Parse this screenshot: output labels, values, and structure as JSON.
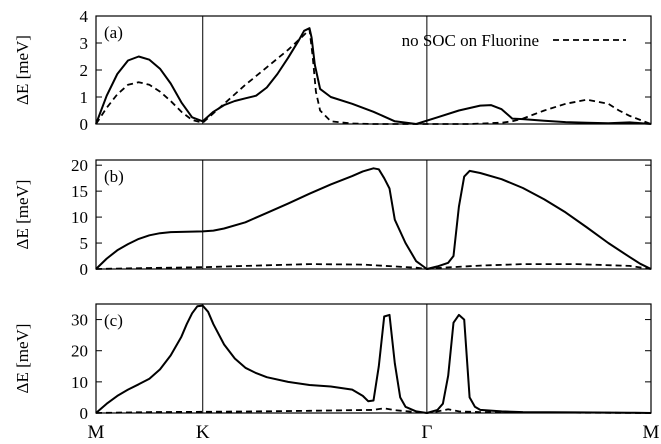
{
  "chart_data": [
    {
      "type": "line",
      "panel_label": "(a)",
      "ylabel": "ΔE [meV]",
      "ylim": [
        0,
        4
      ],
      "yticks": [
        0,
        1,
        2,
        3,
        4
      ],
      "xlim": [
        0,
        5.2
      ],
      "legend": {
        "text": "no SOC on Fluorine",
        "placement": "top-right"
      },
      "series": [
        {
          "style": "solid",
          "x": [
            0,
            0.1,
            0.2,
            0.3,
            0.4,
            0.5,
            0.6,
            0.7,
            0.8,
            0.9,
            1.0,
            1.1,
            1.2,
            1.3,
            1.4,
            1.5,
            1.6,
            1.7,
            1.8,
            1.9,
            1.95,
            2.0,
            2.02,
            2.05,
            2.1,
            2.2,
            2.4,
            2.6,
            2.8,
            3.0,
            3.2,
            3.4,
            3.6,
            3.7,
            3.8,
            3.9,
            4.0,
            4.2,
            4.4,
            4.6,
            4.8,
            5.0,
            5.2
          ],
          "y": [
            0,
            1.05,
            1.85,
            2.35,
            2.5,
            2.38,
            2.05,
            1.5,
            0.8,
            0.25,
            0.1,
            0.45,
            0.7,
            0.85,
            0.95,
            1.05,
            1.35,
            1.85,
            2.45,
            3.1,
            3.45,
            3.55,
            3.2,
            2.2,
            1.3,
            1.0,
            0.75,
            0.45,
            0.1,
            0.0,
            0.25,
            0.5,
            0.68,
            0.7,
            0.55,
            0.2,
            0.18,
            0.12,
            0.07,
            0.05,
            0.03,
            0.06,
            0.0
          ]
        },
        {
          "style": "dashed",
          "x": [
            0,
            0.1,
            0.2,
            0.3,
            0.4,
            0.5,
            0.6,
            0.7,
            0.8,
            0.9,
            1.0,
            1.2,
            1.4,
            1.6,
            1.8,
            1.95,
            2.0,
            2.03,
            2.06,
            2.1,
            2.2,
            2.4,
            2.6,
            2.8,
            3.0,
            3.5,
            3.8,
            3.9,
            4.0,
            4.1,
            4.2,
            4.4,
            4.6,
            4.8,
            4.9,
            5.0,
            5.2
          ],
          "y": [
            0,
            0.6,
            1.1,
            1.45,
            1.55,
            1.45,
            1.2,
            0.85,
            0.45,
            0.15,
            0.05,
            0.75,
            1.45,
            2.1,
            2.75,
            3.3,
            3.5,
            2.5,
            1.2,
            0.5,
            0.1,
            0.02,
            0.0,
            0.0,
            0.0,
            0.0,
            0.05,
            0.1,
            0.2,
            0.35,
            0.5,
            0.75,
            0.9,
            0.75,
            0.5,
            0.3,
            0.0
          ]
        }
      ]
    },
    {
      "type": "line",
      "panel_label": "(b)",
      "ylabel": "ΔE [meV]",
      "ylim": [
        0,
        21
      ],
      "yticks": [
        0,
        5,
        10,
        15,
        20
      ],
      "xlim": [
        0,
        5.2
      ],
      "series": [
        {
          "style": "solid",
          "x": [
            0,
            0.1,
            0.2,
            0.3,
            0.4,
            0.5,
            0.6,
            0.7,
            0.8,
            0.9,
            1.0,
            1.1,
            1.2,
            1.4,
            1.6,
            1.8,
            2.0,
            2.2,
            2.4,
            2.5,
            2.6,
            2.65,
            2.7,
            2.75,
            2.8,
            2.9,
            3.0,
            3.1,
            3.2,
            3.3,
            3.35,
            3.4,
            3.45,
            3.5,
            3.6,
            3.8,
            4.0,
            4.2,
            4.4,
            4.6,
            4.8,
            5.0,
            5.1,
            5.2
          ],
          "y": [
            0,
            2.0,
            3.6,
            4.8,
            5.8,
            6.5,
            6.9,
            7.1,
            7.15,
            7.2,
            7.25,
            7.4,
            7.8,
            9.0,
            10.8,
            12.6,
            14.5,
            16.3,
            17.9,
            18.8,
            19.4,
            19.2,
            17.5,
            15.5,
            9.5,
            5.0,
            1.5,
            0.0,
            0.5,
            1.2,
            2.5,
            12.0,
            17.8,
            18.9,
            18.5,
            17.3,
            15.6,
            13.4,
            10.9,
            8.0,
            5.0,
            2.3,
            1.0,
            0
          ]
        },
        {
          "style": "dashed",
          "x": [
            0,
            0.5,
            1.0,
            1.5,
            2.0,
            2.5,
            3.0,
            3.1,
            3.2,
            3.6,
            4.0,
            4.5,
            5.0,
            5.2
          ],
          "y": [
            0,
            0.2,
            0.35,
            0.65,
            0.95,
            0.85,
            0.25,
            0.0,
            0.2,
            0.65,
            0.95,
            0.95,
            0.6,
            0
          ]
        }
      ]
    },
    {
      "type": "line",
      "panel_label": "(c)",
      "ylabel": "ΔE [meV]",
      "ylim": [
        0,
        35
      ],
      "yticks": [
        0,
        10,
        20,
        30
      ],
      "xlim": [
        0,
        5.2
      ],
      "xticks": [
        {
          "x": 0,
          "label": "M"
        },
        {
          "x": 1.0,
          "label": "K"
        },
        {
          "x": 3.1,
          "label": "Γ"
        },
        {
          "x": 5.2,
          "label": "M"
        }
      ],
      "series": [
        {
          "style": "solid",
          "x": [
            0,
            0.1,
            0.2,
            0.3,
            0.4,
            0.5,
            0.6,
            0.7,
            0.8,
            0.85,
            0.9,
            0.95,
            1.0,
            1.05,
            1.1,
            1.2,
            1.3,
            1.4,
            1.5,
            1.6,
            1.8,
            2.0,
            2.2,
            2.4,
            2.5,
            2.55,
            2.6,
            2.65,
            2.7,
            2.75,
            2.8,
            2.85,
            2.9,
            3.0,
            3.1,
            3.2,
            3.25,
            3.3,
            3.35,
            3.4,
            3.45,
            3.5,
            3.55,
            3.6,
            3.8,
            4.0,
            4.5,
            5.0,
            5.2
          ],
          "y": [
            0,
            3.0,
            5.5,
            7.5,
            9.2,
            11.0,
            14.0,
            18.5,
            24.5,
            28.5,
            32.0,
            34.3,
            34.5,
            32.5,
            28.5,
            22.0,
            17.5,
            14.5,
            12.8,
            11.5,
            10.0,
            9.0,
            8.5,
            7.5,
            5.5,
            3.8,
            4.0,
            15.0,
            31.0,
            31.5,
            16.0,
            5.0,
            2.0,
            0.5,
            0.0,
            1.0,
            3.0,
            12.0,
            29.0,
            31.5,
            30.0,
            5.0,
            2.0,
            1.0,
            0.5,
            0.3,
            0.2,
            0.1,
            0
          ]
        },
        {
          "style": "dashed",
          "x": [
            0,
            0.5,
            1.0,
            1.5,
            2.0,
            2.4,
            2.6,
            2.7,
            2.8,
            3.0,
            3.1,
            3.2,
            3.3,
            3.4,
            3.6,
            4.0,
            5.2
          ],
          "y": [
            0,
            0.3,
            0.4,
            0.5,
            0.7,
            0.9,
            1.0,
            1.5,
            0.9,
            0.3,
            0.0,
            0.5,
            1.2,
            0.5,
            0.3,
            0.2,
            0
          ]
        }
      ]
    }
  ]
}
